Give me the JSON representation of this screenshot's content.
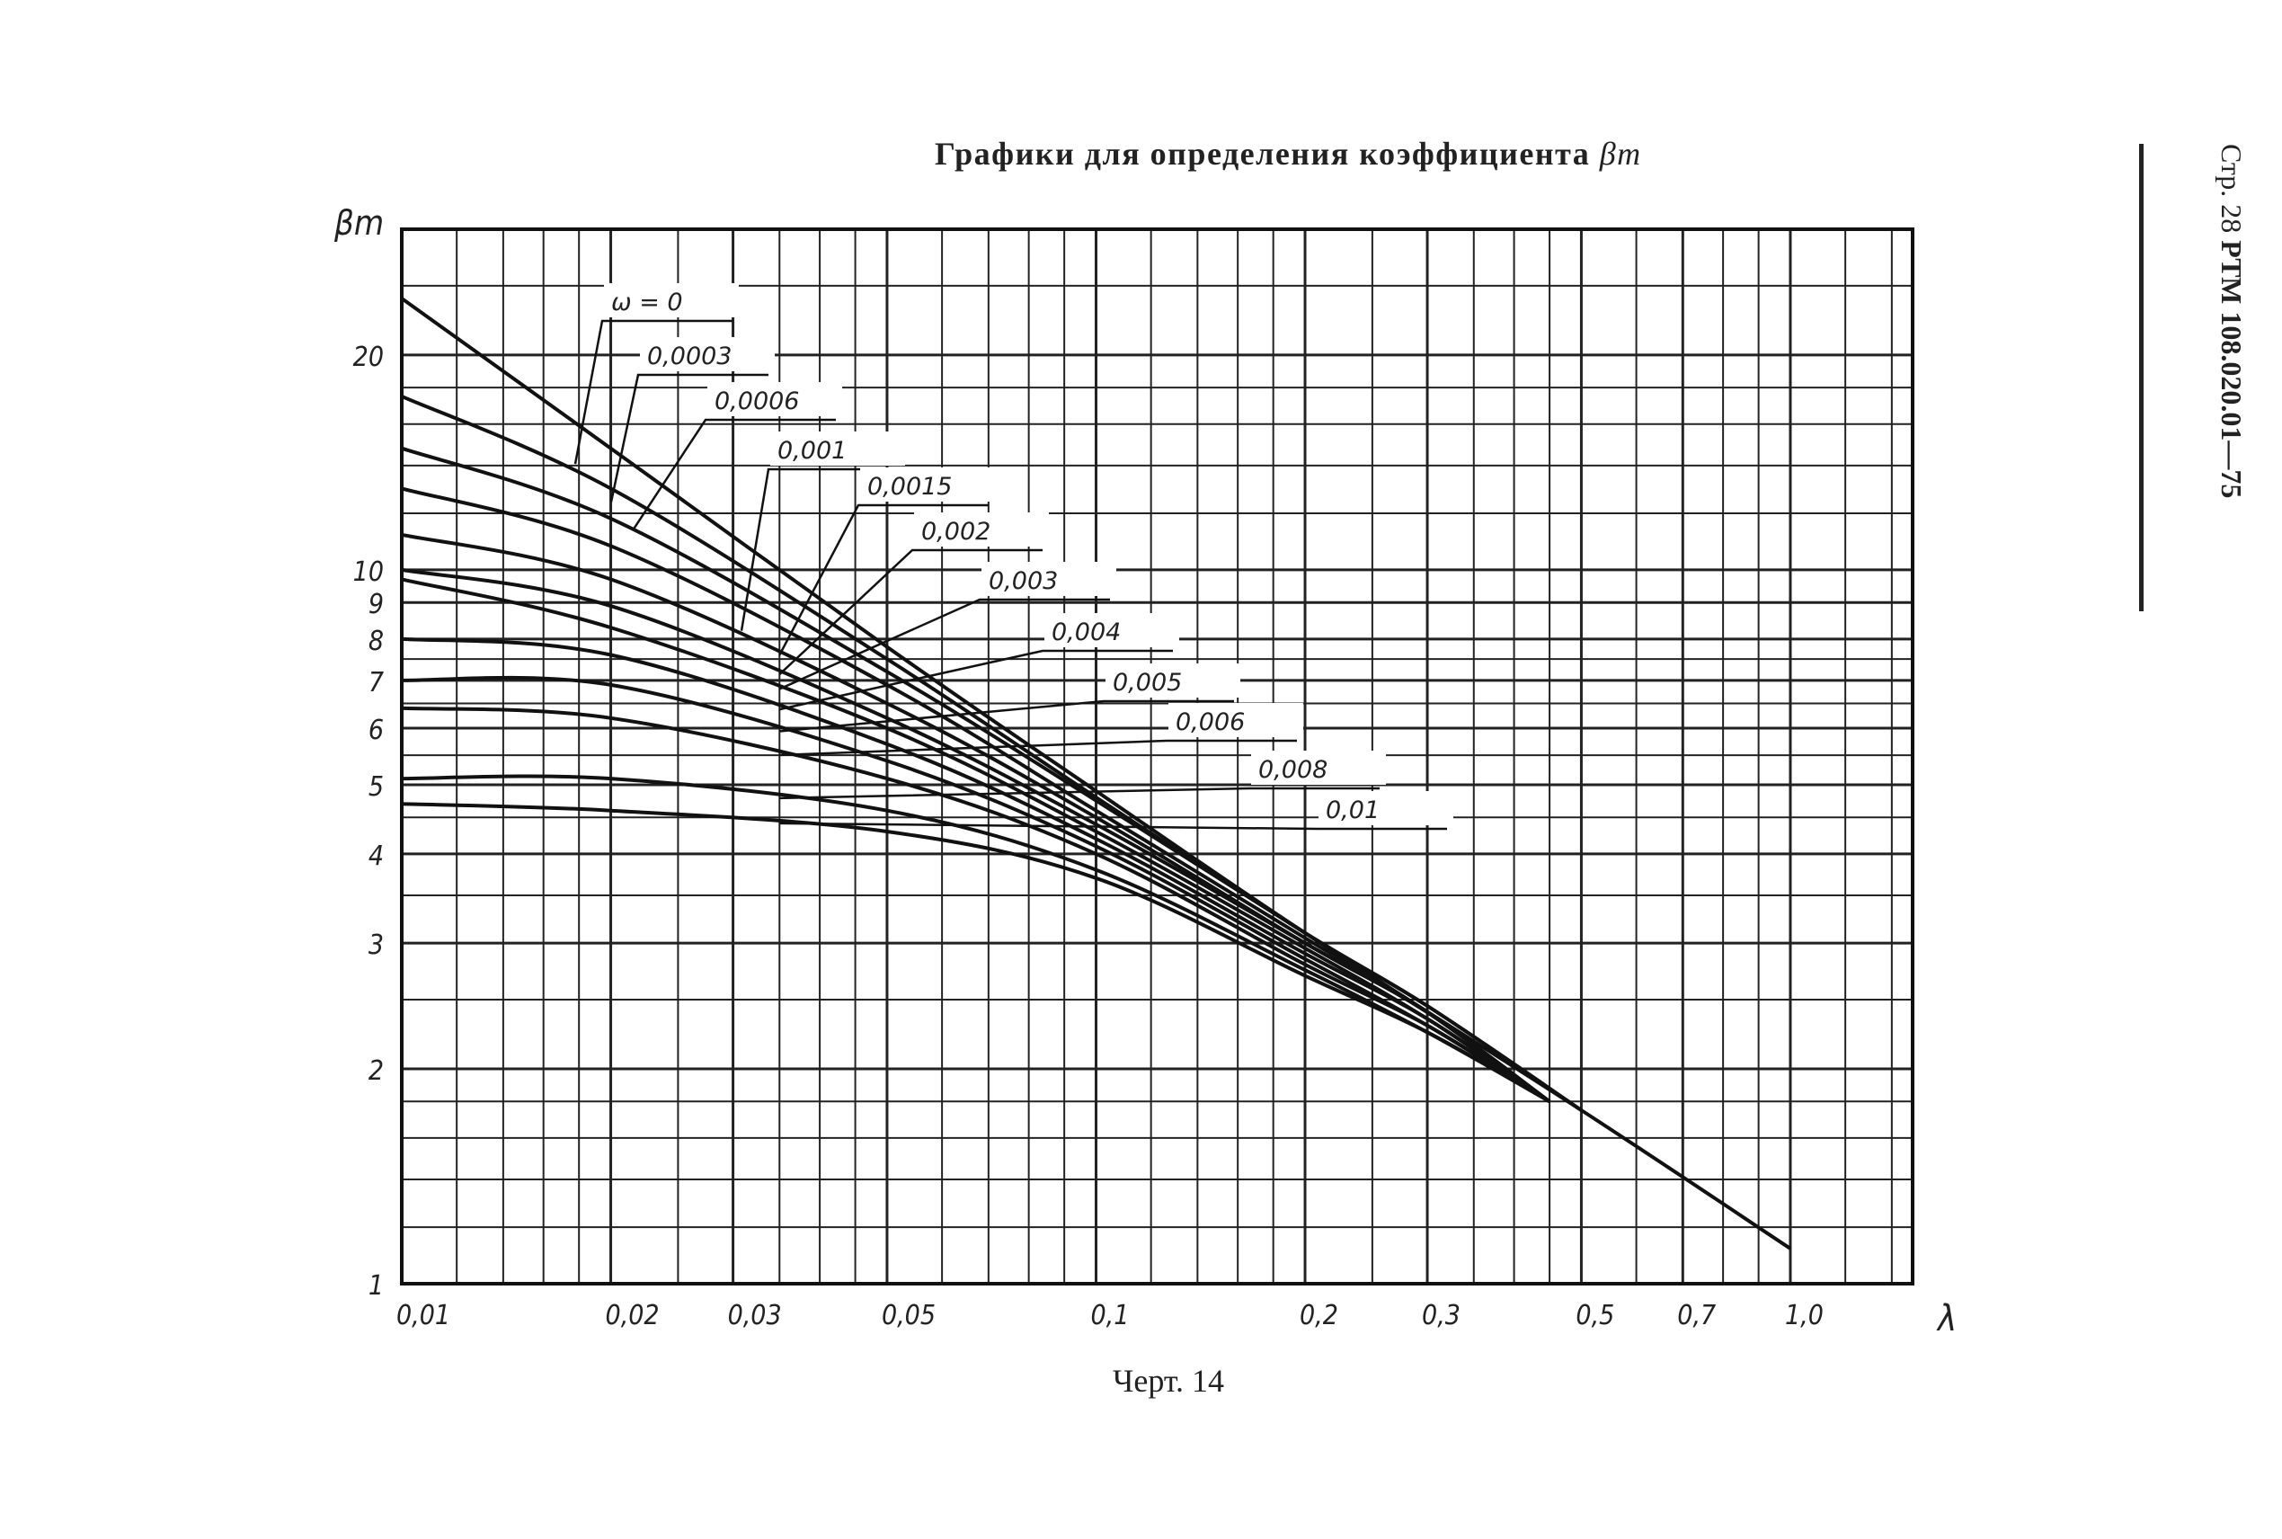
{
  "page": {
    "title_text": "Графики для определения коэффициента",
    "title_symbol": "βm",
    "caption": "Черт. 14",
    "side_prefix": "Стр. 28",
    "side_doc": "РТМ 108.020.01—75"
  },
  "chart_data": {
    "type": "line",
    "title": "Графики для определения коэффициента βm",
    "xlabel": "λ",
    "ylabel": "βm",
    "x_scale": "log",
    "y_scale": "log",
    "xlim": [
      0.01,
      1.5
    ],
    "ylim": [
      1,
      30
    ],
    "grid": true,
    "x_tick_values": [
      0.01,
      0.02,
      0.03,
      0.05,
      0.1,
      0.2,
      0.3,
      0.5,
      0.7,
      1.0
    ],
    "x_tick_labels": [
      "0,01",
      "0,02",
      "0,03",
      "0,05",
      "0,1",
      "0,2",
      "0,3",
      "0,5",
      "0,7",
      "1,0"
    ],
    "y_tick_values": [
      1,
      2,
      3,
      4,
      5,
      6,
      7,
      8,
      9,
      10,
      20
    ],
    "y_tick_labels": [
      "1",
      "2",
      "3",
      "4",
      "5",
      "6",
      "7",
      "8",
      "9",
      "10",
      "20"
    ],
    "series": [
      {
        "name": "ω = 0",
        "x": [
          0.01,
          0.02,
          0.05,
          0.1,
          0.2,
          0.5,
          1.0
        ],
        "y": [
          24,
          14.8,
          7.8,
          4.9,
          3.1,
          1.75,
          1.12
        ]
      },
      {
        "name": "0,0003",
        "x": [
          0.01,
          0.02,
          0.05,
          0.1,
          0.2,
          0.3,
          0.5
        ],
        "y": [
          17.5,
          13.0,
          7.5,
          4.8,
          3.1,
          2.45,
          1.75
        ]
      },
      {
        "name": "0,0006",
        "x": [
          0.01,
          0.02,
          0.05,
          0.1,
          0.2,
          0.3,
          0.5
        ],
        "y": [
          14.8,
          11.8,
          7.2,
          4.75,
          3.1,
          2.45,
          1.75
        ]
      },
      {
        "name": "0,001",
        "x": [
          0.01,
          0.02,
          0.05,
          0.1,
          0.2,
          0.3,
          0.45
        ],
        "y": [
          13.0,
          10.8,
          6.9,
          4.6,
          3.05,
          2.4,
          1.8
        ]
      },
      {
        "name": "0,0015",
        "x": [
          0.01,
          0.02,
          0.05,
          0.1,
          0.2,
          0.3,
          0.45
        ],
        "y": [
          11.2,
          9.7,
          6.5,
          4.5,
          3.0,
          2.4,
          1.8
        ]
      },
      {
        "name": "0,002",
        "x": [
          0.01,
          0.02,
          0.05,
          0.1,
          0.2,
          0.3,
          0.45
        ],
        "y": [
          10.0,
          8.9,
          6.2,
          4.4,
          3.0,
          2.4,
          1.8
        ]
      },
      {
        "name": "0,003",
        "x": [
          0.01,
          0.02,
          0.05,
          0.1,
          0.2,
          0.3,
          0.45
        ],
        "y": [
          9.7,
          8.3,
          6.0,
          4.3,
          2.95,
          2.35,
          1.8
        ]
      },
      {
        "name": "0,004",
        "x": [
          0.01,
          0.02,
          0.05,
          0.1,
          0.2,
          0.3,
          0.45
        ],
        "y": [
          8.0,
          7.6,
          5.7,
          4.2,
          2.9,
          2.35,
          1.8
        ]
      },
      {
        "name": "0,005",
        "x": [
          0.01,
          0.02,
          0.05,
          0.1,
          0.2,
          0.3,
          0.45
        ],
        "y": [
          7.0,
          6.9,
          5.4,
          4.1,
          2.85,
          2.3,
          1.8
        ]
      },
      {
        "name": "0,006",
        "x": [
          0.01,
          0.02,
          0.05,
          0.1,
          0.2,
          0.3,
          0.45
        ],
        "y": [
          6.4,
          6.2,
          5.1,
          4.0,
          2.8,
          2.3,
          1.8
        ]
      },
      {
        "name": "0,008",
        "x": [
          0.01,
          0.02,
          0.05,
          0.1,
          0.2,
          0.3,
          0.45
        ],
        "y": [
          5.1,
          5.1,
          4.6,
          3.8,
          2.75,
          2.25,
          1.8
        ]
      },
      {
        "name": "0,01",
        "x": [
          0.01,
          0.02,
          0.05,
          0.1,
          0.2,
          0.3,
          0.45
        ],
        "y": [
          4.7,
          4.6,
          4.3,
          3.7,
          2.7,
          2.25,
          1.8
        ]
      }
    ]
  }
}
